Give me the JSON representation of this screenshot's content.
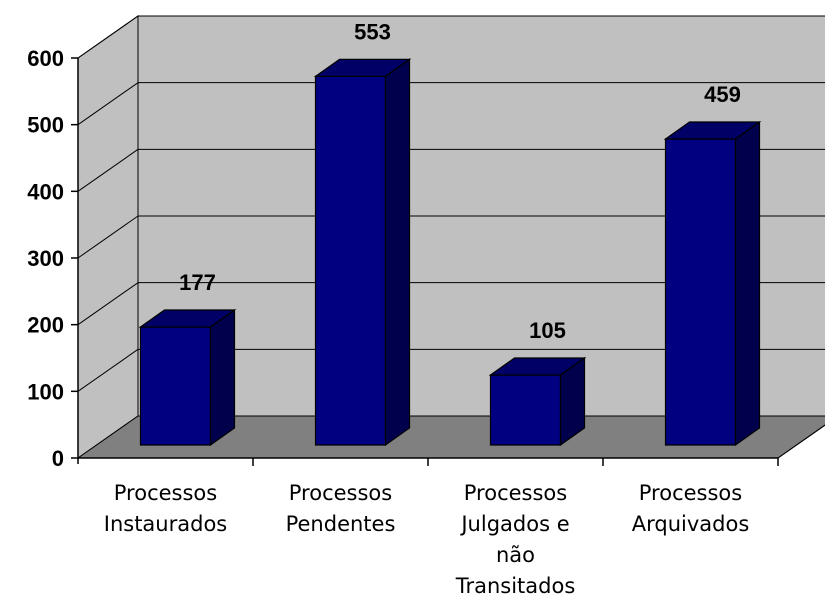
{
  "chart_data": {
    "type": "bar",
    "title": "",
    "xlabel": "",
    "ylabel": "",
    "categories": [
      [
        "Processos",
        "Instaurados"
      ],
      [
        "Processos",
        "Pendentes"
      ],
      [
        "Processos",
        "Julgados e",
        "não",
        "Transitados"
      ],
      [
        "Processos",
        "Arquivados"
      ]
    ],
    "values": [
      177,
      553,
      105,
      459
    ],
    "ylim": [
      0,
      600
    ],
    "yticks": [
      0,
      100,
      200,
      300,
      400,
      500,
      600
    ],
    "grid": true,
    "legend": "none",
    "style": "3d-column",
    "colors": {
      "bar_front": "#000080",
      "bar_top": "#000066",
      "bar_side": "#00004d",
      "back_wall": "#c0c0c0",
      "side_wall": "#c0c0c0",
      "floor": "#808080"
    }
  }
}
